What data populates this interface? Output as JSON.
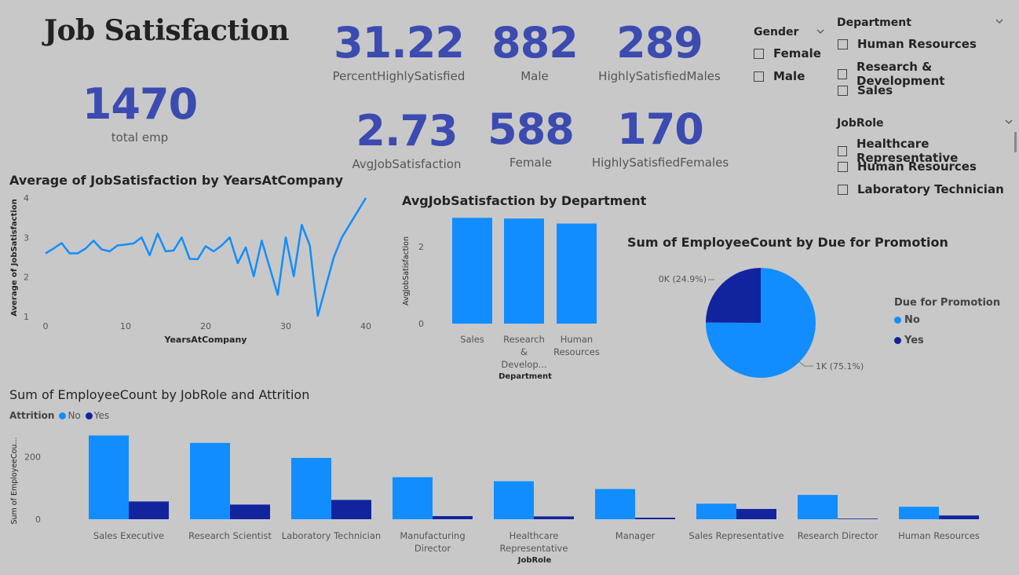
{
  "page_title": "Job Satisfaction",
  "kpis": {
    "total_emp": {
      "value": "1470",
      "label": "total emp"
    },
    "percent_highly_satisfied": {
      "value": "31.22",
      "label": "PercentHighlySatisfied"
    },
    "male": {
      "value": "882",
      "label": "Male"
    },
    "highly_satisfied_males": {
      "value": "289",
      "label": "HighlySatisfiedMales"
    },
    "avg_job_satisfaction": {
      "value": "2.73",
      "label": "AvgJobSatisfaction"
    },
    "female": {
      "value": "588",
      "label": "Female"
    },
    "highly_satisfied_females": {
      "value": "170",
      "label": "HighlySatisfiedFemales"
    }
  },
  "slicers": {
    "gender": {
      "title": "Gender",
      "options": [
        "Female",
        "Male"
      ]
    },
    "department": {
      "title": "Department",
      "options": [
        "Human Resources",
        "Research & Development",
        "Sales"
      ]
    },
    "jobrole": {
      "title": "JobRole",
      "options": [
        "Healthcare Representative",
        "Human Resources",
        "Laboratory Technician"
      ]
    }
  },
  "colors": {
    "no": "#118dff",
    "yes": "#12239e",
    "kpi": "#3b4bb0"
  },
  "chart_data": [
    {
      "id": "line",
      "type": "line",
      "title": "Average of JobSatisfaction by YearsAtCompany",
      "xlabel": "YearsAtCompany",
      "ylabel": "Average of JobSatisfaction",
      "xlim": [
        0,
        40
      ],
      "ylim": [
        1,
        4
      ],
      "xticks": [
        "0",
        "10",
        "20",
        "30",
        "40"
      ],
      "yticks": [
        "1",
        "2",
        "3",
        "4"
      ],
      "x": [
        0,
        1,
        2,
        3,
        4,
        5,
        6,
        7,
        8,
        9,
        10,
        11,
        12,
        13,
        14,
        15,
        16,
        17,
        18,
        19,
        20,
        21,
        22,
        23,
        24,
        25,
        26,
        27,
        29,
        30,
        31,
        32,
        33,
        34,
        36,
        37,
        40
      ],
      "y": [
        2.6,
        2.72,
        2.86,
        2.6,
        2.6,
        2.72,
        2.92,
        2.7,
        2.65,
        2.8,
        2.82,
        2.85,
        3.0,
        2.55,
        3.1,
        2.65,
        2.67,
        3.0,
        2.46,
        2.45,
        2.78,
        2.65,
        2.8,
        3.0,
        2.35,
        2.75,
        2.02,
        2.92,
        1.55,
        3.0,
        2.02,
        3.32,
        2.8,
        1.02,
        2.5,
        3.0,
        4.0
      ]
    },
    {
      "id": "dept",
      "type": "bar",
      "title": "AvgJobSatisfaction by Department",
      "xlabel": "Department",
      "ylabel": "AvgJobSatisfaction",
      "categories": [
        "Sales",
        "Research & Develop...",
        "Human Resources"
      ],
      "category_lines": [
        [
          "Sales"
        ],
        [
          "Research",
          "&",
          "Develop..."
        ],
        [
          "Human",
          "Resources"
        ]
      ],
      "values": [
        2.75,
        2.73,
        2.6
      ],
      "ylim": [
        0,
        3
      ],
      "yticks": [
        "0",
        "2"
      ]
    },
    {
      "id": "pie",
      "type": "pie",
      "title": "Sum of EmployeeCount by Due for Promotion",
      "legend_title": "Due for Promotion",
      "legend_position": "right",
      "slices": [
        {
          "name": "No",
          "value": 75.1,
          "label": "1K (75.1%)"
        },
        {
          "name": "Yes",
          "value": 24.9,
          "label": "0K (24.9%)"
        }
      ]
    },
    {
      "id": "attr",
      "type": "bar",
      "title": "Sum of EmployeeCount by JobRole and Attrition",
      "xlabel": "JobRole",
      "ylabel": "Sum of EmployeeCou...",
      "legend_title": "Attrition",
      "legend_position": "top-left",
      "categories": [
        "Sales Executive",
        "Research Scientist",
        "Laboratory Technician",
        "Manufacturing Director",
        "Healthcare Representative",
        "Manager",
        "Sales Representative",
        "Research Director",
        "Human Resources"
      ],
      "category_lines": [
        [
          "Sales Executive"
        ],
        [
          "Research Scientist"
        ],
        [
          "Laboratory Technician"
        ],
        [
          "Manufacturing",
          "Director"
        ],
        [
          "Healthcare",
          "Representative"
        ],
        [
          "Manager"
        ],
        [
          "Sales Representative"
        ],
        [
          "Research Director"
        ],
        [
          "Human Resources"
        ]
      ],
      "series": [
        {
          "name": "No",
          "values": [
            269,
            245,
            197,
            135,
            122,
            97,
            50,
            78,
            40
          ]
        },
        {
          "name": "Yes",
          "values": [
            57,
            47,
            62,
            10,
            9,
            5,
            33,
            2,
            12
          ]
        }
      ],
      "ylim": [
        0,
        280
      ],
      "yticks": [
        "0",
        "200"
      ]
    }
  ]
}
